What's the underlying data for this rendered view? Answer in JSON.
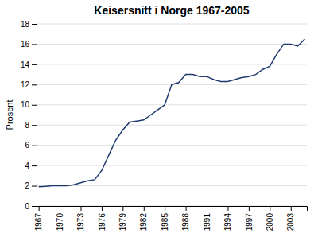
{
  "chart_data": {
    "type": "line",
    "title": "Keisersnitt i Norge 1967-2005",
    "ylabel": "Prosent",
    "x": [
      1967,
      1968,
      1969,
      1970,
      1971,
      1972,
      1973,
      1974,
      1975,
      1976,
      1977,
      1978,
      1979,
      1980,
      1981,
      1982,
      1983,
      1984,
      1985,
      1986,
      1987,
      1988,
      1989,
      1990,
      1991,
      1992,
      1993,
      1994,
      1995,
      1996,
      1997,
      1998,
      1999,
      2000,
      2001,
      2002,
      2003,
      2004,
      2005
    ],
    "values": [
      1.9,
      1.95,
      2.0,
      2.0,
      2.0,
      2.1,
      2.3,
      2.5,
      2.6,
      3.5,
      5.0,
      6.5,
      7.5,
      8.3,
      8.4,
      8.5,
      9.0,
      9.5,
      10.0,
      12.0,
      12.2,
      13.0,
      13.0,
      12.8,
      12.8,
      12.5,
      12.3,
      12.3,
      12.5,
      12.7,
      12.8,
      13.0,
      13.5,
      13.8,
      15.0,
      16.0,
      16.0,
      15.8,
      16.5
    ],
    "color": "#1F3A6E",
    "xlim": [
      1966.7,
      2005.3
    ],
    "xticks": [
      1967,
      1970,
      1973,
      1976,
      1979,
      1982,
      1985,
      1988,
      1991,
      1994,
      1997,
      2000,
      2003
    ],
    "ylim": [
      0,
      18
    ],
    "yticks": [
      0,
      2,
      4,
      6,
      8,
      10,
      12,
      14,
      16,
      18
    ],
    "grid": true
  }
}
